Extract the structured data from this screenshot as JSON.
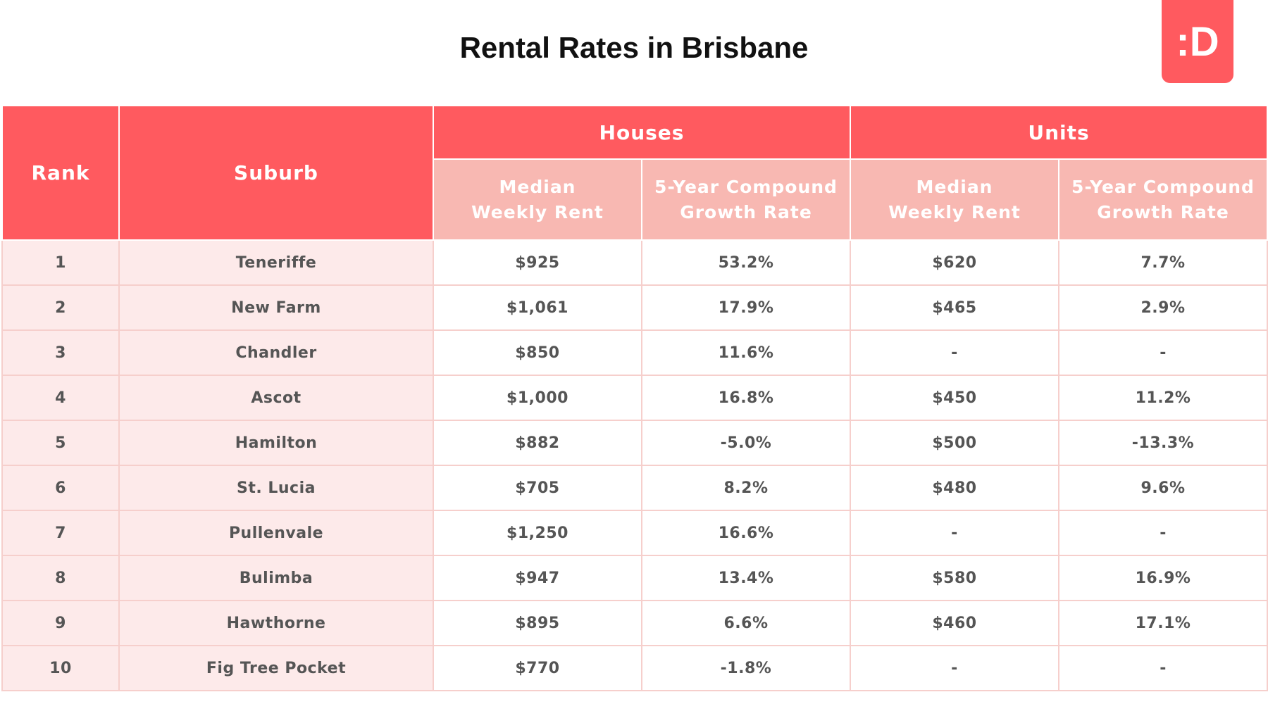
{
  "header": {
    "title": "Rental Rates in Brisbane",
    "logo": ":D"
  },
  "table": {
    "columns": {
      "rank": "Rank",
      "suburb": "Suburb",
      "groups": [
        "Houses",
        "Units"
      ],
      "subcolumns": [
        "Median Weekly Rent",
        "5-Year Compound Growth Rate",
        "Median Weekly Rent",
        "5-Year Compound Growth Rate"
      ]
    },
    "rows": [
      [
        "1",
        "Teneriffe",
        "$925",
        "53.2%",
        "$620",
        "7.7%"
      ],
      [
        "2",
        "New Farm",
        "$1,061",
        "17.9%",
        "$465",
        "2.9%"
      ],
      [
        "3",
        "Chandler",
        "$850",
        "11.6%",
        "-",
        "-"
      ],
      [
        "4",
        "Ascot",
        "$1,000",
        "16.8%",
        "$450",
        "11.2%"
      ],
      [
        "5",
        "Hamilton",
        "$882",
        "-5.0%",
        "$500",
        "-13.3%"
      ],
      [
        "6",
        "St. Lucia",
        "$705",
        "8.2%",
        "$480",
        "9.6%"
      ],
      [
        "7",
        "Pullenvale",
        "$1,250",
        "16.6%",
        "-",
        "-"
      ],
      [
        "8",
        "Bulimba",
        "$947",
        "13.4%",
        "$580",
        "16.9%"
      ],
      [
        "9",
        "Hawthorne",
        "$895",
        "6.6%",
        "$460",
        "17.1%"
      ],
      [
        "10",
        "Fig Tree Pocket",
        "$770",
        "-1.8%",
        "-",
        "-"
      ]
    ]
  }
}
